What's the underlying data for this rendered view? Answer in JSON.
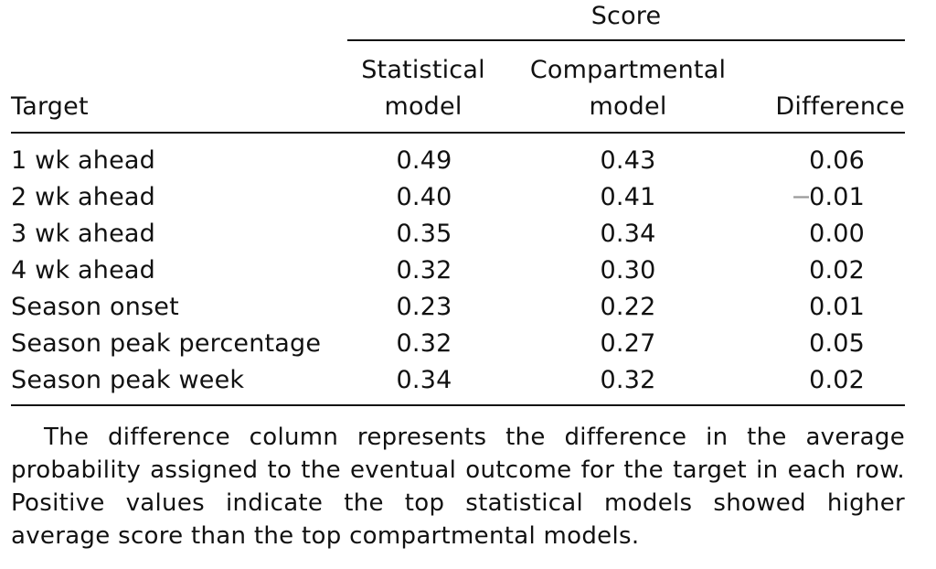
{
  "table": {
    "group_header": "Score",
    "headers": {
      "target": "Target",
      "statistical_line1": "Statistical",
      "statistical_line2": "model",
      "compartmental_line1": "Compartmental",
      "compartmental_line2": "model",
      "difference": "Difference"
    },
    "rows": [
      {
        "target": "1 wk ahead",
        "statistical": "0.49",
        "compartmental": "0.43",
        "difference": "0.06"
      },
      {
        "target": "2 wk ahead",
        "statistical": "0.40",
        "compartmental": "0.41",
        "difference_sign": "−",
        "difference": "0.01"
      },
      {
        "target": "3 wk ahead",
        "statistical": "0.35",
        "compartmental": "0.34",
        "difference": "0.00"
      },
      {
        "target": "4 wk ahead",
        "statistical": "0.32",
        "compartmental": "0.30",
        "difference": "0.02"
      },
      {
        "target": "Season onset",
        "statistical": "0.23",
        "compartmental": "0.22",
        "difference": "0.01"
      },
      {
        "target": "Season peak percentage",
        "statistical": "0.32",
        "compartmental": "0.27",
        "difference": "0.05"
      },
      {
        "target": "Season peak week",
        "statistical": "0.34",
        "compartmental": "0.32",
        "difference": "0.02"
      }
    ]
  },
  "caption": "The difference column represents the difference in the average probability assigned to the eventual outcome for the target in each row. Positive values indicate the top statistical models showed higher average score than the top compartmental models."
}
